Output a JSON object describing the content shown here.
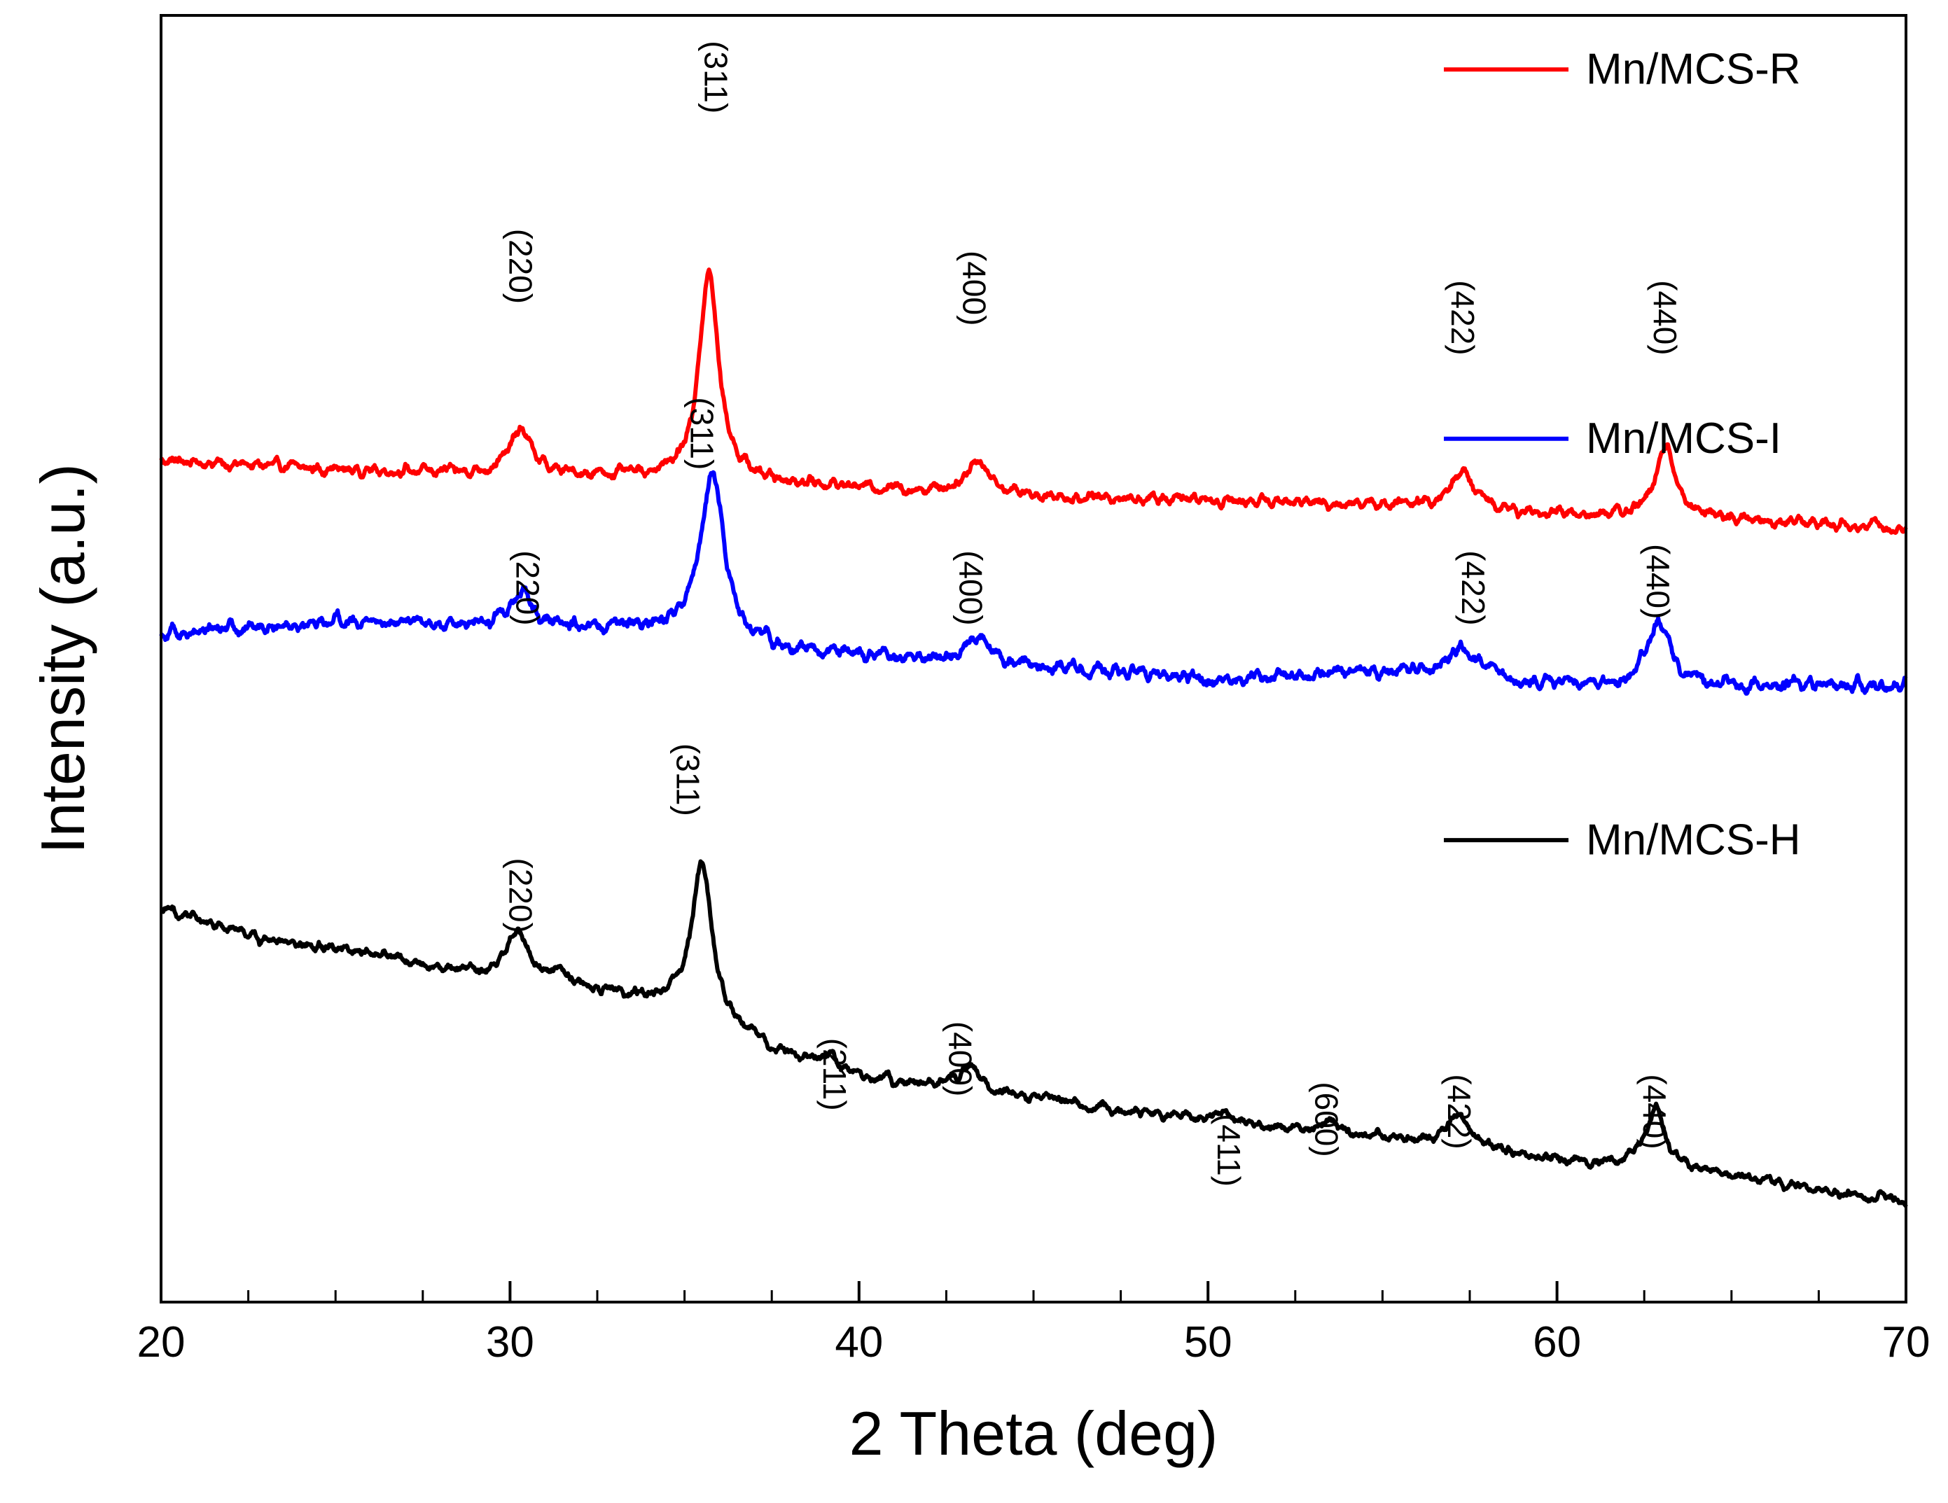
{
  "chart_data": {
    "type": "line",
    "title": "",
    "xlabel": "2 Theta (deg)",
    "ylabel": "Intensity (a.u.)",
    "xlim": [
      20,
      70
    ],
    "ylim": [
      0,
      100
    ],
    "x_ticks": [
      20,
      30,
      40,
      50,
      60,
      70
    ],
    "x_tick_labels": [
      "20",
      "30",
      "40",
      "50",
      "60",
      "70"
    ],
    "x_minor_step": 2.5,
    "grid": false,
    "legend_position": "right",
    "series": [
      {
        "name": "Mn/MCS-R",
        "color": "#ff0000",
        "baseline": [
          [
            20,
            65.4
          ],
          [
            25,
            64.7
          ],
          [
            30,
            64.3
          ],
          [
            34,
            64.1
          ],
          [
            38,
            63.6
          ],
          [
            45,
            62.6
          ],
          [
            50,
            62.3
          ],
          [
            55,
            62.0
          ],
          [
            60,
            61.2
          ],
          [
            65,
            60.8
          ],
          [
            70,
            60.2
          ]
        ],
        "peaks": [
          {
            "x": 30.3,
            "h": 3.5,
            "w": 0.38
          },
          {
            "x": 35.7,
            "h": 16.0,
            "w": 0.34
          },
          {
            "x": 43.4,
            "h": 2.6,
            "w": 0.4
          },
          {
            "x": 57.3,
            "h": 3.0,
            "w": 0.38
          },
          {
            "x": 63.1,
            "h": 5.4,
            "w": 0.36
          }
        ],
        "noise": 0.45
      },
      {
        "name": "Mn/MCS-I",
        "color": "#0000ff",
        "baseline": [
          [
            20,
            52.0
          ],
          [
            25,
            53.0
          ],
          [
            30,
            52.5
          ],
          [
            34,
            52.2
          ],
          [
            38,
            50.5
          ],
          [
            45,
            49.5
          ],
          [
            50,
            48.4
          ],
          [
            55,
            49.1
          ],
          [
            60,
            48.0
          ],
          [
            65,
            47.9
          ],
          [
            70,
            47.8
          ]
        ],
        "peaks": [
          {
            "x": 30.3,
            "h": 2.8,
            "w": 0.4
          },
          {
            "x": 35.8,
            "h": 13.0,
            "w": 0.4
          },
          {
            "x": 43.4,
            "h": 2.0,
            "w": 0.35
          },
          {
            "x": 57.3,
            "h": 2.5,
            "w": 0.4
          },
          {
            "x": 62.9,
            "h": 5.0,
            "w": 0.4
          }
        ],
        "noise": 0.55
      },
      {
        "name": "Mn/MCS-H",
        "color": "#000000",
        "baseline": [
          [
            20,
            30.5
          ],
          [
            23,
            28.3
          ],
          [
            27,
            26.5
          ],
          [
            30,
            25.0
          ],
          [
            33,
            24.0
          ],
          [
            35,
            23.0
          ],
          [
            38,
            19.0
          ],
          [
            40,
            17.5
          ],
          [
            45,
            15.8
          ],
          [
            50,
            14.1
          ],
          [
            55,
            12.7
          ],
          [
            60,
            11.0
          ],
          [
            65,
            9.7
          ],
          [
            70,
            7.8
          ]
        ],
        "peaks": [
          {
            "x": 30.2,
            "h": 3.8,
            "w": 0.38
          },
          {
            "x": 31.4,
            "h": 1.2,
            "w": 0.25
          },
          {
            "x": 35.5,
            "h": 11.7,
            "w": 0.34
          },
          {
            "x": 39.2,
            "h": 0.8,
            "w": 0.3
          },
          {
            "x": 43.2,
            "h": 2.0,
            "w": 0.35
          },
          {
            "x": 50.4,
            "h": 0.8,
            "w": 0.3
          },
          {
            "x": 53.5,
            "h": 1.1,
            "w": 0.3
          },
          {
            "x": 57.2,
            "h": 2.8,
            "w": 0.38
          },
          {
            "x": 62.8,
            "h": 4.6,
            "w": 0.38
          }
        ],
        "noise": 0.4
      }
    ],
    "annotations": [
      {
        "text": "(220)",
        "x": 30.3,
        "y": 80.5,
        "series": "Mn/MCS-R"
      },
      {
        "text": "(311)",
        "x": 35.9,
        "y": 95.2,
        "series": "Mn/MCS-R"
      },
      {
        "text": "(400)",
        "x": 43.3,
        "y": 78.8,
        "series": "Mn/MCS-R"
      },
      {
        "text": "(422)",
        "x": 57.3,
        "y": 76.5,
        "series": "Mn/MCS-R"
      },
      {
        "text": "(440)",
        "x": 63.1,
        "y": 76.5,
        "series": "Mn/MCS-R"
      },
      {
        "text": "(220)",
        "x": 30.5,
        "y": 55.5,
        "series": "Mn/MCS-I"
      },
      {
        "text": "(311)",
        "x": 35.5,
        "y": 67.5,
        "series": "Mn/MCS-I"
      },
      {
        "text": "(400)",
        "x": 43.2,
        "y": 55.5,
        "series": "Mn/MCS-I"
      },
      {
        "text": "(422)",
        "x": 57.6,
        "y": 55.5,
        "series": "Mn/MCS-I"
      },
      {
        "text": "(440)",
        "x": 62.9,
        "y": 56.0,
        "series": "Mn/MCS-I"
      },
      {
        "text": "(220)",
        "x": 30.3,
        "y": 31.6,
        "series": "Mn/MCS-H"
      },
      {
        "text": "(311)",
        "x": 35.1,
        "y": 40.6,
        "series": "Mn/MCS-H"
      },
      {
        "text": "(211)",
        "x": 39.3,
        "y": 17.7,
        "series": "Mn/MCS-H"
      },
      {
        "text": "(400)",
        "x": 42.9,
        "y": 18.9,
        "series": "Mn/MCS-H"
      },
      {
        "text": "(411)",
        "x": 50.6,
        "y": 11.8,
        "series": "Mn/MCS-H"
      },
      {
        "text": "(600)",
        "x": 53.4,
        "y": 14.2,
        "series": "Mn/MCS-H"
      },
      {
        "text": "(422)",
        "x": 57.2,
        "y": 14.8,
        "series": "Mn/MCS-H"
      },
      {
        "text": "(440)",
        "x": 62.8,
        "y": 14.8,
        "series": "Mn/MCS-H"
      }
    ],
    "legend_entries": [
      {
        "label": "Mn/MCS-R",
        "color": "#ff0000",
        "y": 95.8
      },
      {
        "label": "Mn/MCS-I",
        "color": "#0000ff",
        "y": 67.1
      },
      {
        "label": "Mn/MCS-H",
        "color": "#000000",
        "y": 35.9
      }
    ]
  }
}
